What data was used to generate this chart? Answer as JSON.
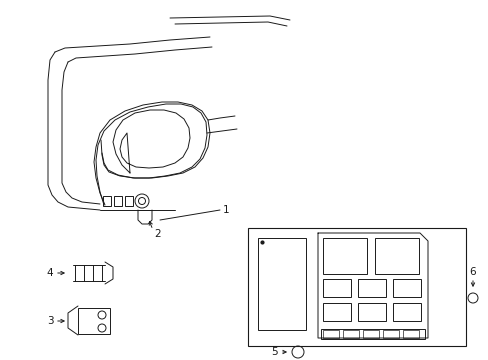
{
  "bg_color": "#ffffff",
  "line_color": "#1a1a1a",
  "fig_width": 4.89,
  "fig_height": 3.6,
  "dpi": 100,
  "lw": 0.7,
  "label_fs": 7.5
}
